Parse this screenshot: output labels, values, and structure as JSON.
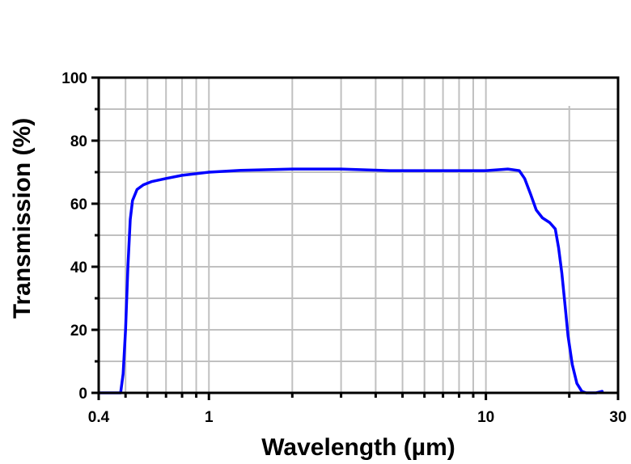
{
  "chart_data": {
    "type": "line",
    "title": "",
    "xlabel": "Wavelength (µm)",
    "ylabel": "Transmission (%)",
    "xscale": "log",
    "xlim": [
      0.4,
      30
    ],
    "ylim": [
      0,
      100
    ],
    "grid": true,
    "legend": null,
    "x_ticks": [
      {
        "value": 0.4,
        "label": "0.4"
      },
      {
        "value": 1,
        "label": "1"
      },
      {
        "value": 10,
        "label": "10"
      },
      {
        "value": 30,
        "label": "30"
      }
    ],
    "x_minor_ticks": [
      0.5,
      0.6,
      0.7,
      0.8,
      0.9,
      2,
      3,
      4,
      5,
      6,
      7,
      8,
      9,
      20
    ],
    "y_ticks": [
      {
        "value": 0,
        "label": "0"
      },
      {
        "value": 20,
        "label": "20"
      },
      {
        "value": 40,
        "label": "40"
      },
      {
        "value": 60,
        "label": "60"
      },
      {
        "value": 80,
        "label": "80"
      },
      {
        "value": 100,
        "label": "100"
      }
    ],
    "y_minor_ticks": [
      10,
      30,
      50,
      70,
      90
    ],
    "series": [
      {
        "name": "Transmission",
        "color": "#0000ff",
        "x": [
          0.4,
          0.48,
          0.49,
          0.5,
          0.51,
          0.52,
          0.53,
          0.55,
          0.58,
          0.62,
          0.7,
          0.8,
          1.0,
          1.3,
          2.0,
          3.0,
          4.5,
          7.0,
          10.0,
          12.0,
          13.2,
          13.8,
          14.5,
          15.2,
          16.0,
          17.0,
          17.8,
          18.3,
          18.8,
          19.3,
          19.8,
          20.5,
          21.3,
          22.2,
          23.0,
          25.0,
          26.3
        ],
        "y": [
          0,
          0,
          6,
          20,
          40,
          55,
          61,
          64.5,
          66,
          67,
          68,
          69,
          70,
          70.6,
          71,
          71,
          70.5,
          70.5,
          70.5,
          71,
          70.5,
          68,
          63,
          58,
          55.5,
          54,
          52,
          46,
          38,
          28,
          18,
          9,
          3,
          0.5,
          0,
          0,
          0.5
        ]
      }
    ]
  },
  "axes": {
    "x_title": "Wavelength (µm)",
    "y_title": "Transmission (%)"
  },
  "colors": {
    "line": "#0000ff",
    "grid": "#c0c0c0",
    "axis": "#000000",
    "background": "#ffffff"
  }
}
